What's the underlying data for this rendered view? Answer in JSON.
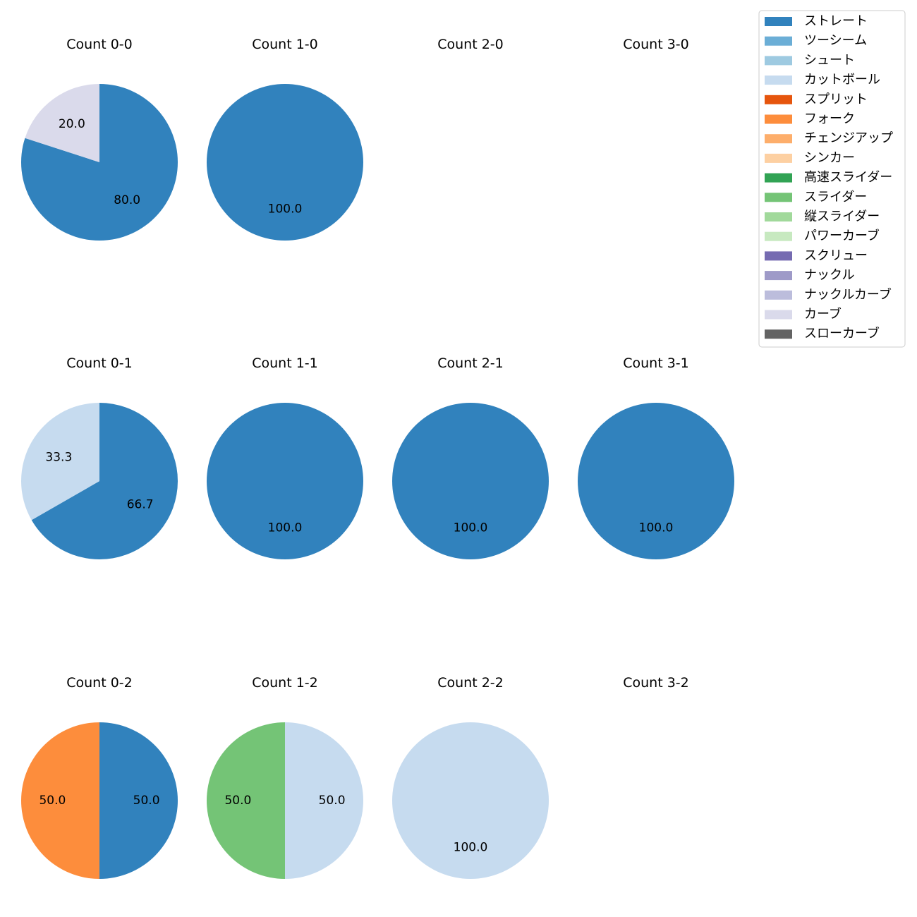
{
  "chart_data": {
    "type": "pie",
    "layout": {
      "rows": 3,
      "cols": 4
    },
    "legend": {
      "position": "top-right",
      "entries": [
        {
          "label": "ストレート",
          "color": "#3182bd"
        },
        {
          "label": "ツーシーム",
          "color": "#6baed6"
        },
        {
          "label": "シュート",
          "color": "#9ecae1"
        },
        {
          "label": "カットボール",
          "color": "#c6dbef"
        },
        {
          "label": "スプリット",
          "color": "#e6550d"
        },
        {
          "label": "フォーク",
          "color": "#fd8d3c"
        },
        {
          "label": "チェンジアップ",
          "color": "#fdae6b"
        },
        {
          "label": "シンカー",
          "color": "#fdd0a2"
        },
        {
          "label": "高速スライダー",
          "color": "#31a354"
        },
        {
          "label": "スライダー",
          "color": "#74c476"
        },
        {
          "label": "縦スライダー",
          "color": "#a1d99b"
        },
        {
          "label": "パワーカーブ",
          "color": "#c7e9c0"
        },
        {
          "label": "スクリュー",
          "color": "#756bb1"
        },
        {
          "label": "ナックル",
          "color": "#9e9ac8"
        },
        {
          "label": "ナックルカーブ",
          "color": "#bcbddc"
        },
        {
          "label": "カーブ",
          "color": "#dadaeb"
        },
        {
          "label": "スローカーブ",
          "color": "#636363"
        }
      ]
    },
    "panels": [
      {
        "title": "Count 0-0",
        "slices": [
          {
            "pitch": "ストレート",
            "value": 80.0,
            "label": "80.0"
          },
          {
            "pitch": "カーブ",
            "value": 20.0,
            "label": "20.0"
          }
        ]
      },
      {
        "title": "Count 1-0",
        "slices": [
          {
            "pitch": "ストレート",
            "value": 100.0,
            "label": "100.0"
          }
        ]
      },
      {
        "title": "Count 2-0",
        "slices": []
      },
      {
        "title": "Count 3-0",
        "slices": []
      },
      {
        "title": "Count 0-1",
        "slices": [
          {
            "pitch": "ストレート",
            "value": 66.7,
            "label": "66.7"
          },
          {
            "pitch": "カットボール",
            "value": 33.3,
            "label": "33.3"
          }
        ]
      },
      {
        "title": "Count 1-1",
        "slices": [
          {
            "pitch": "ストレート",
            "value": 100.0,
            "label": "100.0"
          }
        ]
      },
      {
        "title": "Count 2-1",
        "slices": [
          {
            "pitch": "ストレート",
            "value": 100.0,
            "label": "100.0"
          }
        ]
      },
      {
        "title": "Count 3-1",
        "slices": [
          {
            "pitch": "ストレート",
            "value": 100.0,
            "label": "100.0"
          }
        ]
      },
      {
        "title": "Count 0-2",
        "slices": [
          {
            "pitch": "ストレート",
            "value": 50.0,
            "label": "50.0"
          },
          {
            "pitch": "フォーク",
            "value": 50.0,
            "label": "50.0"
          }
        ]
      },
      {
        "title": "Count 1-2",
        "slices": [
          {
            "pitch": "カットボール",
            "value": 50.0,
            "label": "50.0"
          },
          {
            "pitch": "スライダー",
            "value": 50.0,
            "label": "50.0"
          }
        ]
      },
      {
        "title": "Count 2-2",
        "slices": [
          {
            "pitch": "カットボール",
            "value": 100.0,
            "label": "100.0"
          }
        ]
      },
      {
        "title": "Count 3-2",
        "slices": []
      }
    ]
  }
}
